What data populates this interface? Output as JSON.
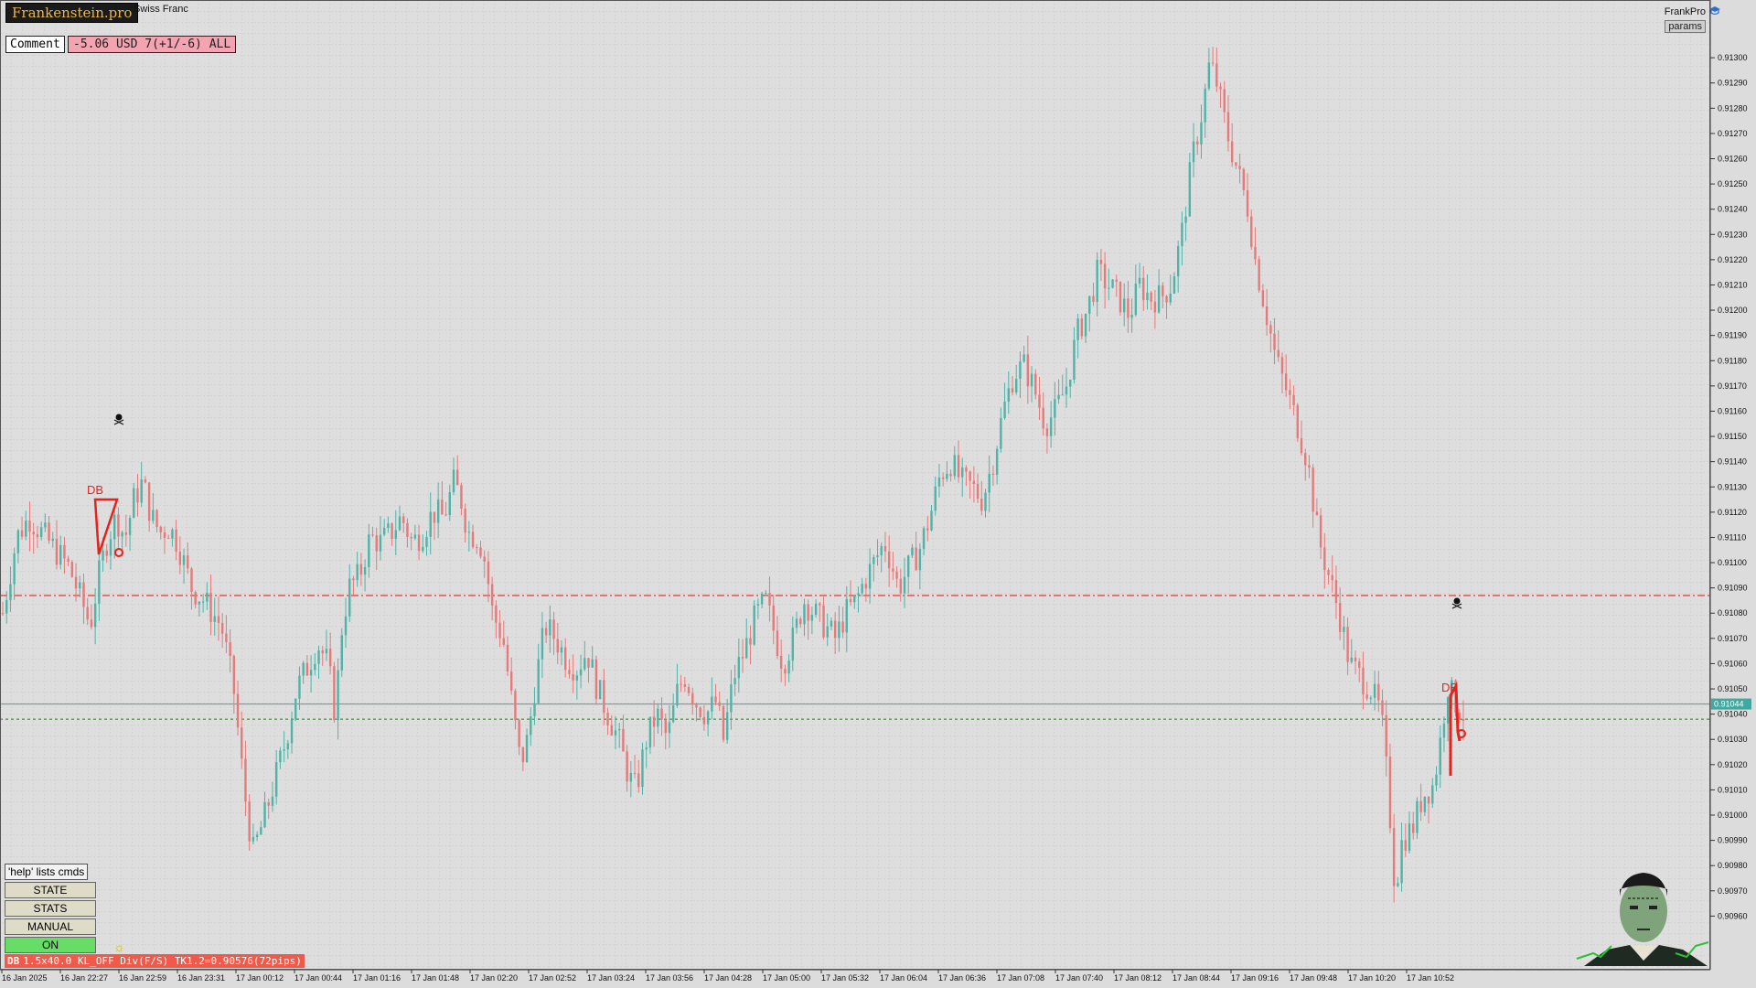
{
  "window": {
    "brand": "Frankenstein.pro",
    "symbol_title": "Swiss Franc",
    "ea_name": "FrankPro",
    "ea_icon": "graduation-cap-icon",
    "params_label": "params"
  },
  "overlay": {
    "comment_label": "Comment",
    "pnl_text": "-5.06 USD 7(+1/-6) ALL",
    "help_text": "'help' lists cmds",
    "buttons": [
      {
        "label": "STATE",
        "state": "idle"
      },
      {
        "label": "STATS",
        "state": "idle"
      },
      {
        "label": "MANUAL",
        "state": "idle"
      },
      {
        "label": "ON",
        "state": "active"
      }
    ],
    "status_tag": "DB",
    "status_text": "1.5x40.0 KL_OFF Div(F/S) TK1.2=0.90576(72pips)",
    "colors": {
      "on": "#66dd66",
      "status": "#f05a4a",
      "pnl": "#f4a3b0"
    }
  },
  "chart_data": {
    "type": "candlestick",
    "price_axis": {
      "min": 0.9095,
      "max": 0.91305,
      "labels": [
        "0.91300",
        "0.91290",
        "0.91280",
        "0.91270",
        "0.91260",
        "0.91250",
        "0.91240",
        "0.91230",
        "0.91220",
        "0.91210",
        "0.91200",
        "0.91190",
        "0.91180",
        "0.91170",
        "0.91160",
        "0.91150",
        "0.91140",
        "0.91130",
        "0.91120",
        "0.91110",
        "0.91100",
        "0.91090",
        "0.91080",
        "0.91070",
        "0.91060",
        "0.91050",
        "0.91040",
        "0.91030",
        "0.91020",
        "0.91010",
        "0.91000",
        "0.90990",
        "0.90980",
        "0.90970",
        "0.90960"
      ]
    },
    "time_labels": [
      "16 Jan 2025",
      "16 Jan 22:27",
      "16 Jan 22:59",
      "16 Jan 23:31",
      "17 Jan 00:12",
      "17 Jan 00:44",
      "17 Jan 01:16",
      "17 Jan 01:48",
      "17 Jan 02:20",
      "17 Jan 02:52",
      "17 Jan 03:24",
      "17 Jan 03:56",
      "17 Jan 04:28",
      "17 Jan 05:00",
      "17 Jan 05:32",
      "17 Jan 06:04",
      "17 Jan 06:36",
      "17 Jan 07:08",
      "17 Jan 07:40",
      "17 Jan 08:12",
      "17 Jan 08:44",
      "17 Jan 09:16",
      "17 Jan 09:48",
      "17 Jan 10:20",
      "17 Jan 10:52"
    ],
    "current_price": "0.91044",
    "levels": {
      "resistance": 0.91087,
      "lower": 0.91038
    },
    "markers": [
      {
        "label": "DB",
        "color": "#e8221a"
      },
      {
        "label": "DB",
        "color": "#e8221a"
      }
    ],
    "path": [
      [
        0,
        0.9108
      ],
      [
        8,
        0.9111
      ],
      [
        15,
        0.91118
      ],
      [
        22,
        0.91112
      ],
      [
        30,
        0.91105
      ],
      [
        38,
        0.91098
      ],
      [
        45,
        0.91085
      ],
      [
        50,
        0.91075
      ],
      [
        55,
        0.91095
      ],
      [
        60,
        0.9111
      ],
      [
        65,
        0.91118
      ],
      [
        70,
        0.9111
      ],
      [
        75,
        0.91125
      ],
      [
        80,
        0.91132
      ],
      [
        85,
        0.91118
      ],
      [
        90,
        0.91112
      ],
      [
        95,
        0.91114
      ],
      [
        100,
        0.91108
      ],
      [
        108,
        0.9109
      ],
      [
        115,
        0.91085
      ],
      [
        120,
        0.9108
      ],
      [
        125,
        0.91075
      ],
      [
        132,
        0.9105
      ],
      [
        138,
        0.9101
      ],
      [
        143,
        0.90985
      ],
      [
        150,
        0.91
      ],
      [
        156,
        0.91015
      ],
      [
        162,
        0.9103
      ],
      [
        168,
        0.9105
      ],
      [
        175,
        0.9106
      ],
      [
        180,
        0.91068
      ],
      [
        186,
        0.9106
      ],
      [
        190,
        0.9104
      ],
      [
        194,
        0.91075
      ],
      [
        198,
        0.9109
      ],
      [
        204,
        0.91095
      ],
      [
        210,
        0.9111
      ],
      [
        216,
        0.91108
      ],
      [
        222,
        0.91112
      ],
      [
        228,
        0.91118
      ],
      [
        234,
        0.91108
      ],
      [
        240,
        0.91112
      ],
      [
        246,
        0.9112
      ],
      [
        252,
        0.91118
      ],
      [
        258,
        0.91132
      ],
      [
        262,
        0.91125
      ],
      [
        266,
        0.91112
      ],
      [
        272,
        0.9111
      ],
      [
        276,
        0.911
      ],
      [
        280,
        0.9108
      ],
      [
        286,
        0.9107
      ],
      [
        292,
        0.9104
      ],
      [
        296,
        0.9102
      ],
      [
        300,
        0.9103
      ],
      [
        304,
        0.9105
      ],
      [
        310,
        0.91075
      ],
      [
        316,
        0.9107
      ],
      [
        322,
        0.91062
      ],
      [
        328,
        0.91058
      ],
      [
        334,
        0.91065
      ],
      [
        340,
        0.9105
      ],
      [
        346,
        0.9104
      ],
      [
        352,
        0.9103
      ],
      [
        358,
        0.91015
      ],
      [
        362,
        0.9101
      ],
      [
        368,
        0.9103
      ],
      [
        374,
        0.9104
      ],
      [
        380,
        0.9103
      ],
      [
        386,
        0.9105
      ],
      [
        390,
        0.91055
      ],
      [
        396,
        0.91045
      ],
      [
        402,
        0.9104
      ],
      [
        408,
        0.91045
      ],
      [
        412,
        0.9103
      ],
      [
        418,
        0.91055
      ],
      [
        424,
        0.91065
      ],
      [
        430,
        0.91078
      ],
      [
        436,
        0.91085
      ],
      [
        440,
        0.91075
      ],
      [
        446,
        0.9106
      ],
      [
        452,
        0.9107
      ],
      [
        458,
        0.91085
      ],
      [
        464,
        0.9108
      ],
      [
        470,
        0.91075
      ],
      [
        476,
        0.9107
      ],
      [
        482,
        0.9108
      ],
      [
        488,
        0.91085
      ],
      [
        492,
        0.91092
      ],
      [
        498,
        0.911
      ],
      [
        504,
        0.91108
      ],
      [
        508,
        0.911
      ],
      [
        512,
        0.9109
      ],
      [
        518,
        0.91098
      ],
      [
        524,
        0.91105
      ],
      [
        530,
        0.91118
      ],
      [
        536,
        0.91135
      ],
      [
        542,
        0.9114
      ],
      [
        548,
        0.91132
      ],
      [
        554,
        0.9113
      ],
      [
        560,
        0.91125
      ],
      [
        566,
        0.9114
      ],
      [
        572,
        0.9116
      ],
      [
        578,
        0.91175
      ],
      [
        584,
        0.91178
      ],
      [
        590,
        0.91168
      ],
      [
        596,
        0.91155
      ],
      [
        602,
        0.9116
      ],
      [
        608,
        0.9117
      ],
      [
        614,
        0.9119
      ],
      [
        620,
        0.912
      ],
      [
        626,
        0.91215
      ],
      [
        632,
        0.9121
      ],
      [
        638,
        0.91205
      ],
      [
        644,
        0.91198
      ],
      [
        650,
        0.9121
      ],
      [
        656,
        0.91205
      ],
      [
        662,
        0.91205
      ],
      [
        668,
        0.9121
      ],
      [
        674,
        0.9123
      ],
      [
        680,
        0.9126
      ],
      [
        686,
        0.9128
      ],
      [
        690,
        0.91298
      ],
      [
        694,
        0.9129
      ],
      [
        700,
        0.9127
      ],
      [
        706,
        0.91255
      ],
      [
        712,
        0.9124
      ],
      [
        716,
        0.9122
      ],
      [
        722,
        0.912
      ],
      [
        728,
        0.9118
      ],
      [
        734,
        0.91168
      ],
      [
        740,
        0.91155
      ],
      [
        746,
        0.9114
      ],
      [
        752,
        0.9111
      ],
      [
        758,
        0.91095
      ],
      [
        764,
        0.9108
      ],
      [
        770,
        0.9106
      ],
      [
        776,
        0.91055
      ],
      [
        782,
        0.9105
      ],
      [
        788,
        0.9104
      ],
      [
        792,
        0.9101
      ],
      [
        796,
        0.9097
      ],
      [
        800,
        0.9099
      ],
      [
        806,
        0.90995
      ],
      [
        812,
        0.91008
      ],
      [
        818,
        0.91012
      ],
      [
        822,
        0.9103
      ],
      [
        826,
        0.91052
      ],
      [
        830,
        0.91045
      ],
      [
        835,
        0.9104
      ]
    ]
  }
}
